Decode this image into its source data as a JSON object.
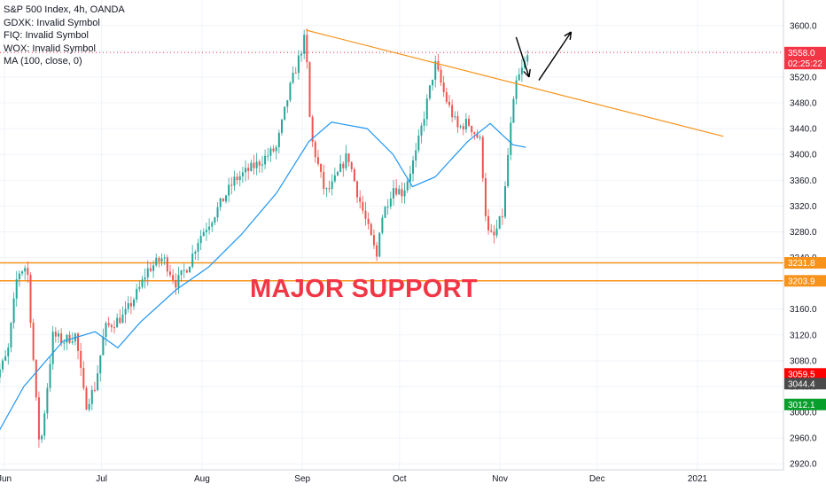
{
  "legend": {
    "title": "S&P 500 Index, 4h, OANDA",
    "symbols": [
      "GDXK: Invalid Symbol",
      "FIQ: Invalid Symbol",
      "WOX: Invalid Symbol"
    ],
    "ma": "MA (100, close, 0)"
  },
  "annotation_text": "MAJOR SUPPORT",
  "chart_data": {
    "type": "candlestick",
    "title": "S&P 500 Index, 4h, OANDA",
    "x_tick_labels": [
      "Jun",
      "Jul",
      "Aug",
      "Sep",
      "Oct",
      "Nov",
      "Dec",
      "2021"
    ],
    "y_ticks": [
      2920,
      2960,
      3000,
      3040,
      3080,
      3120,
      3160,
      3200,
      3240,
      3280,
      3320,
      3360,
      3400,
      3440,
      3480,
      3520,
      3560,
      3600
    ],
    "y_tick_labels": [
      "2920.0",
      "2960.0",
      "3000.0",
      "3040.0",
      "3080.0",
      "3120.0",
      "3160.0",
      "3200.0",
      "3240.0",
      "3280.0",
      "3320.0",
      "3360.0",
      "3400.0",
      "3440.0",
      "3480.0",
      "3520.0",
      "3560.0",
      "3600.0"
    ],
    "ylim": [
      2910,
      3632
    ],
    "grid": true,
    "price_path": [
      [
        "2020-05-28",
        3040
      ],
      [
        "2020-06-02",
        3090
      ],
      [
        "2020-06-05",
        3215
      ],
      [
        "2020-06-08",
        3228
      ],
      [
        "2020-06-11",
        3000
      ],
      [
        "2020-06-12",
        2940
      ],
      [
        "2020-06-16",
        3120
      ],
      [
        "2020-06-19",
        3110
      ],
      [
        "2020-06-23",
        3120
      ],
      [
        "2020-06-26",
        3010
      ],
      [
        "2020-06-29",
        3040
      ],
      [
        "2020-07-02",
        3130
      ],
      [
        "2020-07-08",
        3150
      ],
      [
        "2020-07-13",
        3195
      ],
      [
        "2020-07-15",
        3220
      ],
      [
        "2020-07-20",
        3240
      ],
      [
        "2020-07-24",
        3200
      ],
      [
        "2020-07-28",
        3230
      ],
      [
        "2020-07-31",
        3270
      ],
      [
        "2020-08-04",
        3300
      ],
      [
        "2020-08-11",
        3360
      ],
      [
        "2020-08-18",
        3385
      ],
      [
        "2020-08-24",
        3410
      ],
      [
        "2020-08-28",
        3500
      ],
      [
        "2020-09-02",
        3585
      ],
      [
        "2020-09-03",
        3470
      ],
      [
        "2020-09-04",
        3420
      ],
      [
        "2020-09-08",
        3340
      ],
      [
        "2020-09-10",
        3350
      ],
      [
        "2020-09-15",
        3400
      ],
      [
        "2020-09-18",
        3340
      ],
      [
        "2020-09-21",
        3290
      ],
      [
        "2020-09-24",
        3240
      ],
      [
        "2020-09-25",
        3295
      ],
      [
        "2020-09-29",
        3350
      ],
      [
        "2020-10-02",
        3340
      ],
      [
        "2020-10-06",
        3400
      ],
      [
        "2020-10-09",
        3470
      ],
      [
        "2020-10-12",
        3540
      ],
      [
        "2020-10-15",
        3490
      ],
      [
        "2020-10-19",
        3440
      ],
      [
        "2020-10-22",
        3450
      ],
      [
        "2020-10-26",
        3420
      ],
      [
        "2020-10-28",
        3280
      ],
      [
        "2020-10-30",
        3270
      ],
      [
        "2020-11-02",
        3310
      ],
      [
        "2020-11-04",
        3430
      ],
      [
        "2020-11-06",
        3510
      ],
      [
        "2020-11-09",
        3545
      ],
      [
        "2020-11-10",
        3558
      ]
    ],
    "ma_label": "MA (100, close, 0)",
    "ma_path": [
      [
        "2020-05-28",
        2950
      ],
      [
        "2020-06-07",
        3040
      ],
      [
        "2020-06-19",
        3110
      ],
      [
        "2020-06-29",
        3125
      ],
      [
        "2020-07-06",
        3100
      ],
      [
        "2020-07-13",
        3140
      ],
      [
        "2020-07-24",
        3190
      ],
      [
        "2020-08-03",
        3225
      ],
      [
        "2020-08-13",
        3275
      ],
      [
        "2020-08-24",
        3340
      ],
      [
        "2020-09-03",
        3420
      ],
      [
        "2020-09-10",
        3450
      ],
      [
        "2020-09-21",
        3440
      ],
      [
        "2020-09-29",
        3400
      ],
      [
        "2020-10-05",
        3350
      ],
      [
        "2020-10-12",
        3365
      ],
      [
        "2020-10-22",
        3420
      ],
      [
        "2020-10-29",
        3448
      ],
      [
        "2020-11-05",
        3415
      ],
      [
        "2020-11-09",
        3411
      ]
    ],
    "trendline": {
      "from": [
        "2020-09-02",
        3593
      ],
      "to": [
        "2021-01-09",
        3428
      ]
    },
    "support_levels": [
      {
        "value": 3231.8,
        "label": "3231.8",
        "color": "#f7931a"
      },
      {
        "value": 3203.9,
        "label": "3203.9",
        "color": "#f7931a"
      }
    ],
    "price_markers": [
      {
        "label": "3558.0",
        "value": 3558.0,
        "color": "#f23645"
      },
      {
        "label": "02:25:22",
        "value": 3541,
        "color": "#f23645"
      },
      {
        "label": "3059.5",
        "value": 3059.5,
        "color": "#ff0000"
      },
      {
        "label": "3044.4",
        "value": 3044.4,
        "color": "#4a4a4a"
      },
      {
        "label": "3012.1",
        "value": 3012.1,
        "color": "#089e2c"
      }
    ],
    "annotation": "MAJOR SUPPORT",
    "arrows": [
      {
        "from": [
          "2020-11-06",
          3582
        ],
        "to": [
          "2020-11-10",
          3520
        ]
      },
      {
        "from": [
          "2020-11-13",
          3515
        ],
        "to": [
          "2020-11-23",
          3590
        ]
      }
    ]
  },
  "colors": {
    "up_candle": "#26a69a",
    "down_candle": "#ef5350",
    "ma": "#2196f3",
    "trendline": "#f7931a",
    "annotation": "#f23645",
    "grid": "#f0f3fa",
    "axis_text": "#131722"
  }
}
